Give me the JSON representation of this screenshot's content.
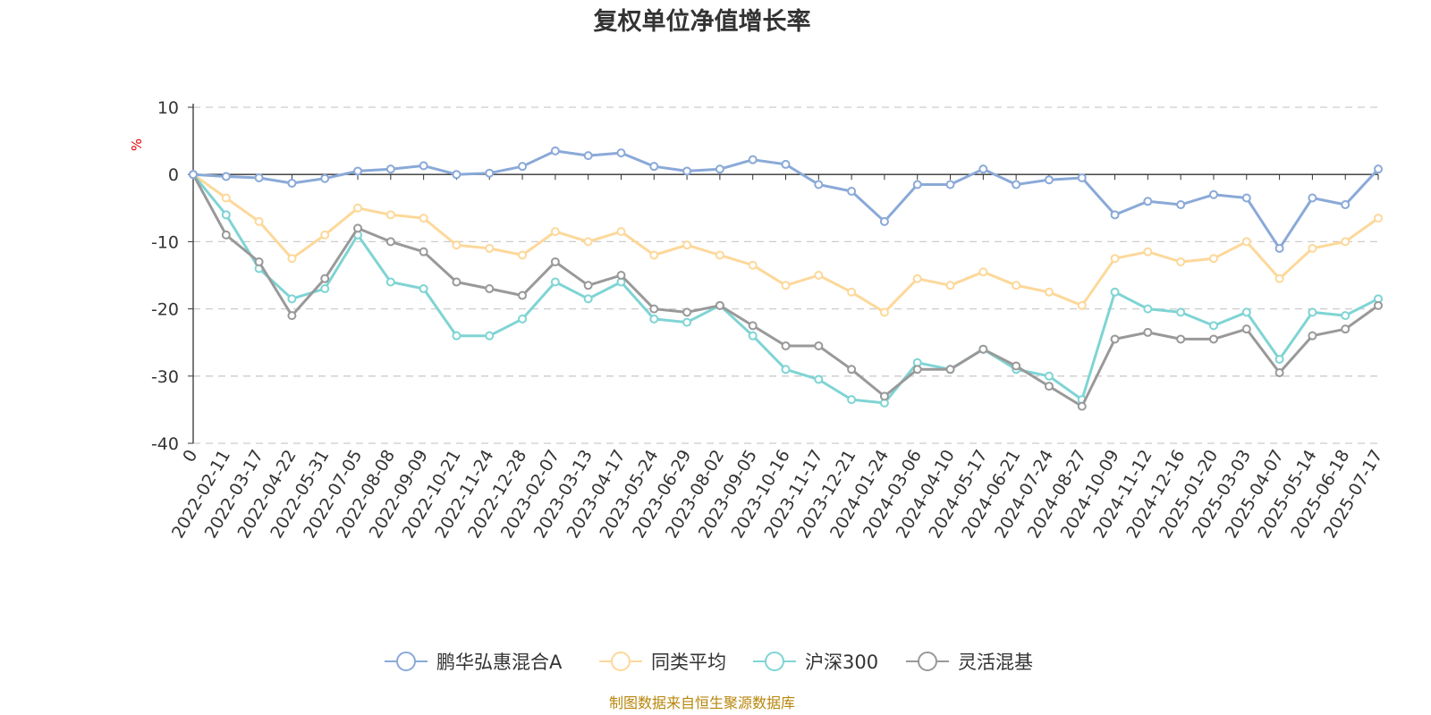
{
  "chart_data": {
    "type": "line",
    "title": "复权单位净值增长率",
    "ylabel": "%",
    "ylim": [
      -40,
      10
    ],
    "yticks": [
      "10",
      "0",
      "-10",
      "-20",
      "-30",
      "-40"
    ],
    "x_tick_labels": [
      "0",
      "2022-02-11",
      "2022-03-17",
      "2022-04-22",
      "2022-05-31",
      "2022-07-05",
      "2022-08-08",
      "2022-09-09",
      "2022-10-21",
      "2022-11-24",
      "2022-12-28",
      "2023-02-07",
      "2023-03-13",
      "2023-04-17",
      "2023-05-24",
      "2023-06-29",
      "2023-08-02",
      "2023-09-05",
      "2023-10-16",
      "2023-11-17",
      "2023-12-21",
      "2024-01-24",
      "2024-03-06",
      "2024-04-10",
      "2024-05-17",
      "2024-06-21",
      "2024-07-24",
      "2024-08-27",
      "2024-10-09",
      "2024-11-12",
      "2024-12-16",
      "2025-01-20",
      "2025-03-03",
      "2025-04-07",
      "2025-05-14",
      "2025-06-18",
      "2025-07-17"
    ],
    "grid": "dashed-horizontal",
    "legend_position": "bottom",
    "series": [
      {
        "name": "鹏华弘惠混合A",
        "color": "#8aa9d8",
        "values": [
          0,
          -0.3,
          -0.5,
          -1.3,
          -0.6,
          0.5,
          0.8,
          1.3,
          0,
          0.2,
          1.2,
          3.5,
          2.8,
          3.2,
          1.2,
          0.5,
          0.8,
          2.2,
          1.5,
          -1.5,
          -2.5,
          -7.0,
          -1.5,
          -1.5,
          0.8,
          -1.5,
          -0.8,
          -0.5,
          -6.0,
          -4.0,
          -4.5,
          -3.0,
          -3.5,
          -11.0,
          -3.5,
          -4.5,
          0.8
        ]
      },
      {
        "name": "同类平均",
        "color": "#fdd89a",
        "values": [
          0,
          -3.5,
          -7.0,
          -12.5,
          -9.0,
          -5.0,
          -6.0,
          -6.5,
          -10.5,
          -11.0,
          -12.0,
          -8.5,
          -10.0,
          -8.5,
          -12.0,
          -10.5,
          -12.0,
          -13.5,
          -16.5,
          -15.0,
          -17.5,
          -20.5,
          -15.5,
          -16.5,
          -14.5,
          -16.5,
          -17.5,
          -19.5,
          -12.5,
          -11.5,
          -13.0,
          -12.5,
          -10.0,
          -15.5,
          -11.0,
          -10.0,
          -6.5
        ]
      },
      {
        "name": "沪深300",
        "color": "#7fd4d4",
        "values": [
          0,
          -6.0,
          -14.0,
          -18.5,
          -17.0,
          -9.0,
          -16.0,
          -17.0,
          -24.0,
          -24.0,
          -21.5,
          -16.0,
          -18.5,
          -16.0,
          -21.5,
          -22.0,
          -19.5,
          -24.0,
          -29.0,
          -30.5,
          -33.5,
          -34.0,
          -28.0,
          -29.0,
          -26.0,
          -29.0,
          -30.0,
          -33.5,
          -17.5,
          -20.0,
          -20.5,
          -22.5,
          -20.5,
          -27.5,
          -20.5,
          -21.0,
          -18.5
        ]
      },
      {
        "name": "灵活混基",
        "color": "#999999",
        "values": [
          0,
          -9.0,
          -13.0,
          -21.0,
          -15.5,
          -8.0,
          -10.0,
          -11.5,
          -16.0,
          -17.0,
          -18.0,
          -13.0,
          -16.5,
          -15.0,
          -20.0,
          -20.5,
          -19.5,
          -22.5,
          -25.5,
          -25.5,
          -29.0,
          -33.0,
          -29.0,
          -29.0,
          -26.0,
          -28.5,
          -31.5,
          -34.5,
          -24.5,
          -23.5,
          -24.5,
          -24.5,
          -23.0,
          -29.5,
          -24.0,
          -23.0,
          -19.5
        ]
      }
    ]
  },
  "source_note": "制图数据来自恒生聚源数据库"
}
